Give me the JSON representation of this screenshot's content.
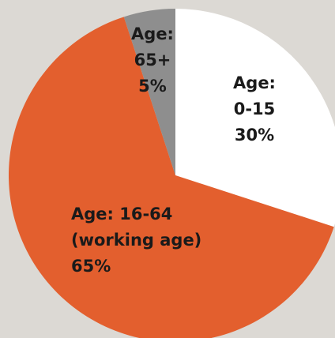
{
  "chart_data": {
    "type": "pie",
    "title": "",
    "start": "12 o'clock",
    "direction": "clockwise",
    "slices": [
      {
        "id": "age-0-15",
        "value": 30,
        "color": "#ffffff",
        "label_lines": [
          "Age:",
          "0-15",
          "30%"
        ]
      },
      {
        "id": "age-16-64",
        "value": 65,
        "color": "#e35f2e",
        "label_lines": [
          "Age: 16-64",
          "(working age)",
          "65%"
        ]
      },
      {
        "id": "age-65-plus",
        "value": 5,
        "color": "#8e8e8e",
        "label_lines": [
          "Age:",
          "65+",
          "5%"
        ]
      }
    ]
  }
}
